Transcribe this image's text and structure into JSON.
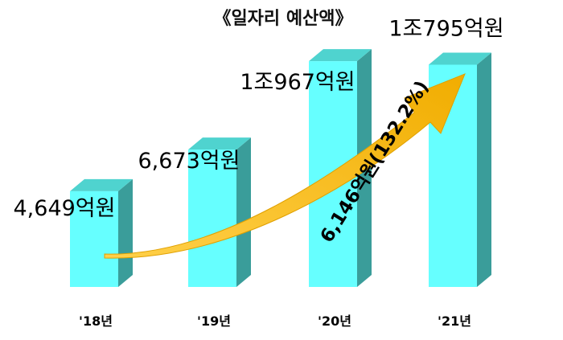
{
  "chart_data": {
    "type": "bar",
    "title": "《일자리 예산액》",
    "categories": [
      "'18년",
      "'19년",
      "'20년",
      "'21년"
    ],
    "values": [
      4649,
      6673,
      10967,
      10795
    ],
    "value_labels": [
      "4,649억원",
      "6,673억원",
      "1조967억원",
      "1조795억원"
    ],
    "unit": "억원",
    "ylim": [
      0,
      11400
    ],
    "grid": false,
    "legend": "none",
    "annotation": {
      "text": "6,146억원(132.2%)",
      "from_category": "'18년",
      "to_category": "'21년"
    }
  },
  "colors": {
    "bar_front": "#66FFFF",
    "bar_top": "#4FD3CF",
    "bar_side": "#3A9D9A",
    "arrow": "#F5B800"
  }
}
